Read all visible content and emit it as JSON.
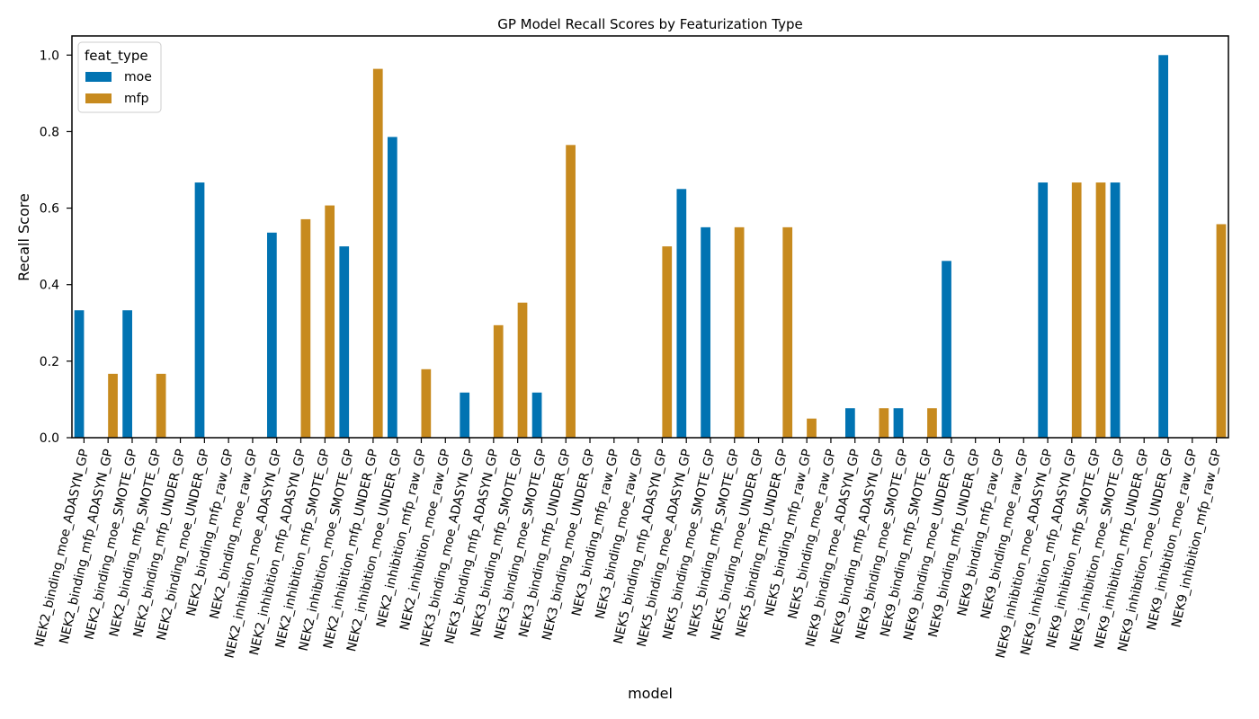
{
  "chart_data": {
    "type": "bar",
    "title": "GP Model Recall Scores by Featurization Type",
    "xlabel": "model",
    "ylabel": "Recall Score",
    "ylim": [
      0.0,
      1.05
    ],
    "yticks": [
      "0.0",
      "0.2",
      "0.4",
      "0.6",
      "0.8",
      "1.0"
    ],
    "grid": false,
    "legend": {
      "title": "feat_type",
      "placement": "top-left"
    },
    "categories": [
      "NEK2_binding_moe_ADASYN_GP",
      "NEK2_binding_mfp_ADASYN_GP",
      "NEK2_binding_moe_SMOTE_GP",
      "NEK2_binding_mfp_SMOTE_GP",
      "NEK2_binding_mfp_UNDER_GP",
      "NEK2_binding_moe_UNDER_GP",
      "NEK2_binding_mfp_raw_GP",
      "NEK2_binding_moe_raw_GP",
      "NEK2_inhibition_moe_ADASYN_GP",
      "NEK2_inhibition_mfp_ADASYN_GP",
      "NEK2_inhibition_mfp_SMOTE_GP",
      "NEK2_inhibition_moe_SMOTE_GP",
      "NEK2_inhibition_mfp_UNDER_GP",
      "NEK2_inhibition_moe_UNDER_GP",
      "NEK2_inhibition_mfp_raw_GP",
      "NEK2_inhibition_moe_raw_GP",
      "NEK3_binding_moe_ADASYN_GP",
      "NEK3_binding_mfp_ADASYN_GP",
      "NEK3_binding_mfp_SMOTE_GP",
      "NEK3_binding_moe_SMOTE_GP",
      "NEK3_binding_mfp_UNDER_GP",
      "NEK3_binding_moe_UNDER_GP",
      "NEK3_binding_mfp_raw_GP",
      "NEK3_binding_moe_raw_GP",
      "NEK5_binding_mfp_ADASYN_GP",
      "NEK5_binding_moe_ADASYN_GP",
      "NEK5_binding_moe_SMOTE_GP",
      "NEK5_binding_mfp_SMOTE_GP",
      "NEK5_binding_moe_UNDER_GP",
      "NEK5_binding_mfp_UNDER_GP",
      "NEK5_binding_mfp_raw_GP",
      "NEK5_binding_moe_raw_GP",
      "NEK9_binding_moe_ADASYN_GP",
      "NEK9_binding_mfp_ADASYN_GP",
      "NEK9_binding_moe_SMOTE_GP",
      "NEK9_binding_mfp_SMOTE_GP",
      "NEK9_binding_moe_UNDER_GP",
      "NEK9_binding_mfp_UNDER_GP",
      "NEK9_binding_mfp_raw_GP",
      "NEK9_binding_moe_raw_GP",
      "NEK9_inhibition_moe_ADASYN_GP",
      "NEK9_inhibition_mfp_ADASYN_GP",
      "NEK9_inhibition_mfp_SMOTE_GP",
      "NEK9_inhibition_moe_SMOTE_GP",
      "NEK9_inhibition_mfp_UNDER_GP",
      "NEK9_inhibition_moe_UNDER_GP",
      "NEK9_inhibition_moe_raw_GP",
      "NEK9_inhibition_mfp_raw_GP"
    ],
    "series": [
      {
        "name": "moe",
        "color": "#0173b2",
        "values": [
          0.333,
          0,
          0.333,
          0,
          0,
          0.667,
          0,
          0,
          0.536,
          0,
          0,
          0.5,
          0,
          0.786,
          0,
          0,
          0.118,
          0,
          0,
          0.118,
          0,
          0,
          0,
          0,
          0,
          0.65,
          0.55,
          0,
          0,
          0,
          0,
          0,
          0.077,
          0,
          0.077,
          0,
          0.462,
          0,
          0,
          0,
          0.667,
          0,
          0,
          0.667,
          0,
          1.0,
          0,
          0
        ]
      },
      {
        "name": "mfp",
        "color": "#c78a1e",
        "values": [
          0,
          0.167,
          0,
          0.167,
          0,
          0,
          0,
          0,
          0,
          0.571,
          0.607,
          0,
          0.964,
          0,
          0.179,
          0,
          0,
          0.294,
          0.353,
          0,
          0.765,
          0,
          0,
          0,
          0.5,
          0,
          0,
          0.55,
          0,
          0.55,
          0.05,
          0,
          0,
          0.077,
          0,
          0.077,
          0,
          0,
          0,
          0,
          0,
          0.667,
          0.667,
          0,
          0,
          0,
          0,
          0.558
        ]
      }
    ]
  }
}
